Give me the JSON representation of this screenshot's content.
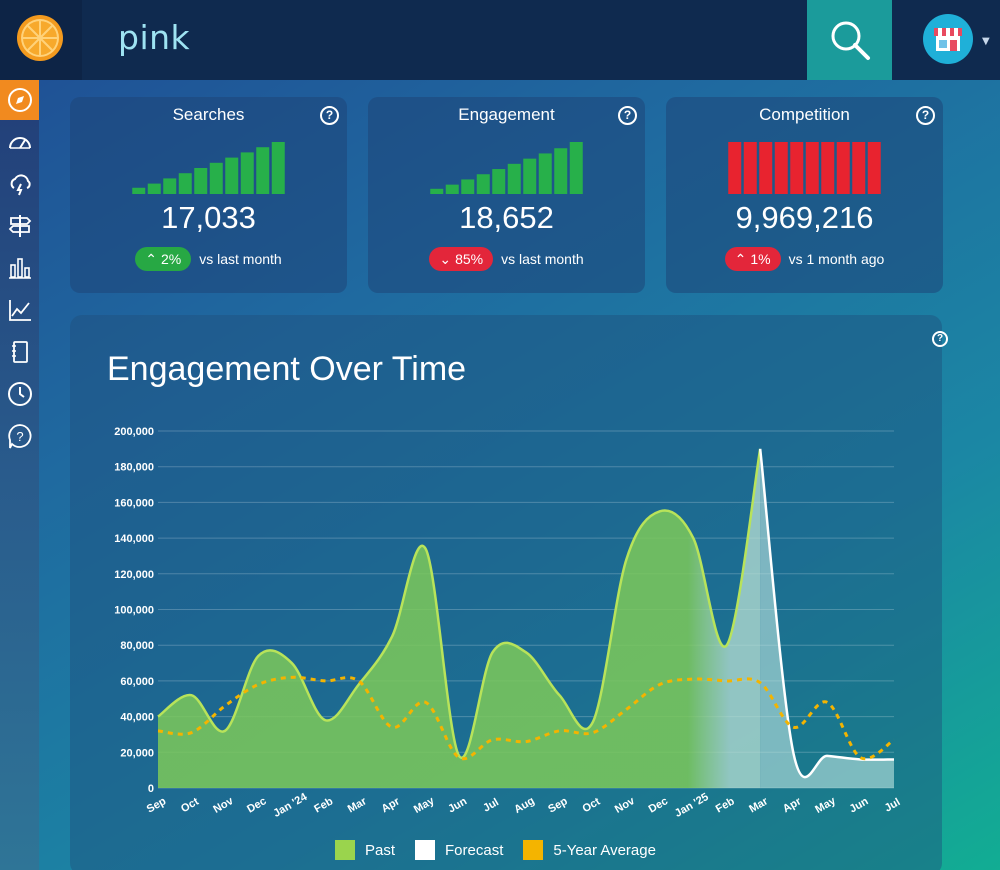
{
  "header": {
    "search_value": "pink",
    "logo_icon": "orange-slice-icon",
    "search_icon": "search-icon",
    "avatar_icon": "storefront-icon"
  },
  "sidebar": {
    "items": [
      {
        "icon": "compass-icon",
        "active": true
      },
      {
        "icon": "speedometer-icon",
        "active": false
      },
      {
        "icon": "cloud-lightning-icon",
        "active": false
      },
      {
        "icon": "signpost-icon",
        "active": false
      },
      {
        "icon": "bar-chart-icon",
        "active": false
      },
      {
        "icon": "line-chart-icon",
        "active": false
      },
      {
        "icon": "notebook-icon",
        "active": false
      },
      {
        "icon": "clock-icon",
        "active": false
      },
      {
        "icon": "help-bubble-icon",
        "active": false
      }
    ]
  },
  "cards": [
    {
      "title": "Searches",
      "value": "17,033",
      "change": "2%",
      "direction": "up",
      "badge_color": "#27a844",
      "bar_color": "#27b04a",
      "bar_levels": [
        0.12,
        0.2,
        0.3,
        0.4,
        0.5,
        0.6,
        0.7,
        0.8,
        0.9,
        1.0
      ],
      "compare": "vs last month"
    },
    {
      "title": "Engagement",
      "value": "18,652",
      "change": "85%",
      "direction": "down",
      "badge_color": "#e3263a",
      "bar_color": "#27b04a",
      "bar_levels": [
        0.1,
        0.18,
        0.28,
        0.38,
        0.48,
        0.58,
        0.68,
        0.78,
        0.88,
        1.0
      ],
      "compare": "vs last month"
    },
    {
      "title": "Competition",
      "value": "9,969,216",
      "change": "1%",
      "direction": "up",
      "badge_color": "#e3263a",
      "bar_color": "#e8232f",
      "bar_levels": [
        1,
        1,
        1,
        1,
        1,
        1,
        1,
        1,
        1,
        1
      ],
      "compare": "vs 1 month ago"
    }
  ],
  "chart_data": {
    "type": "area",
    "title": "Engagement Over Time",
    "categories": [
      "Sep",
      "Oct",
      "Nov",
      "Dec",
      "Jan '24",
      "Feb",
      "Mar",
      "Apr",
      "May",
      "Jun",
      "Jul",
      "Aug",
      "Sep",
      "Oct",
      "Nov",
      "Dec",
      "Jan '25",
      "Feb",
      "Mar",
      "Apr",
      "May",
      "Jun",
      "Jul"
    ],
    "ylim": [
      0,
      200000
    ],
    "yticks": [
      0,
      20000,
      40000,
      60000,
      80000,
      100000,
      120000,
      140000,
      160000,
      180000,
      200000
    ],
    "ytick_labels": [
      "0",
      "20,000",
      "40,000",
      "60,000",
      "80,000",
      "100,000",
      "120,000",
      "140,000",
      "160,000",
      "180,000",
      "200,000"
    ],
    "grid": true,
    "legend_position": "bottom",
    "series": [
      {
        "name": "Past",
        "color": "#9ad44d",
        "style": "area",
        "values": [
          40000,
          52000,
          32000,
          74000,
          70000,
          38000,
          58000,
          85000,
          134000,
          18000,
          76000,
          76000,
          52000,
          37000,
          128000,
          155000,
          140000,
          80000,
          190000,
          null,
          null,
          null,
          null
        ]
      },
      {
        "name": "Forecast",
        "color": "#ffffff",
        "style": "area",
        "values": [
          null,
          null,
          null,
          null,
          null,
          null,
          null,
          null,
          null,
          null,
          null,
          null,
          null,
          null,
          null,
          null,
          null,
          null,
          190000,
          19000,
          18000,
          16000,
          16000
        ]
      },
      {
        "name": "5-Year Average",
        "color": "#f4b400",
        "style": "dashed",
        "values": [
          32000,
          31000,
          46000,
          58000,
          62000,
          60000,
          60000,
          34000,
          48000,
          17000,
          27000,
          26000,
          32000,
          31000,
          44000,
          58000,
          61000,
          60000,
          59000,
          34000,
          48000,
          17000,
          27000
        ]
      }
    ]
  }
}
